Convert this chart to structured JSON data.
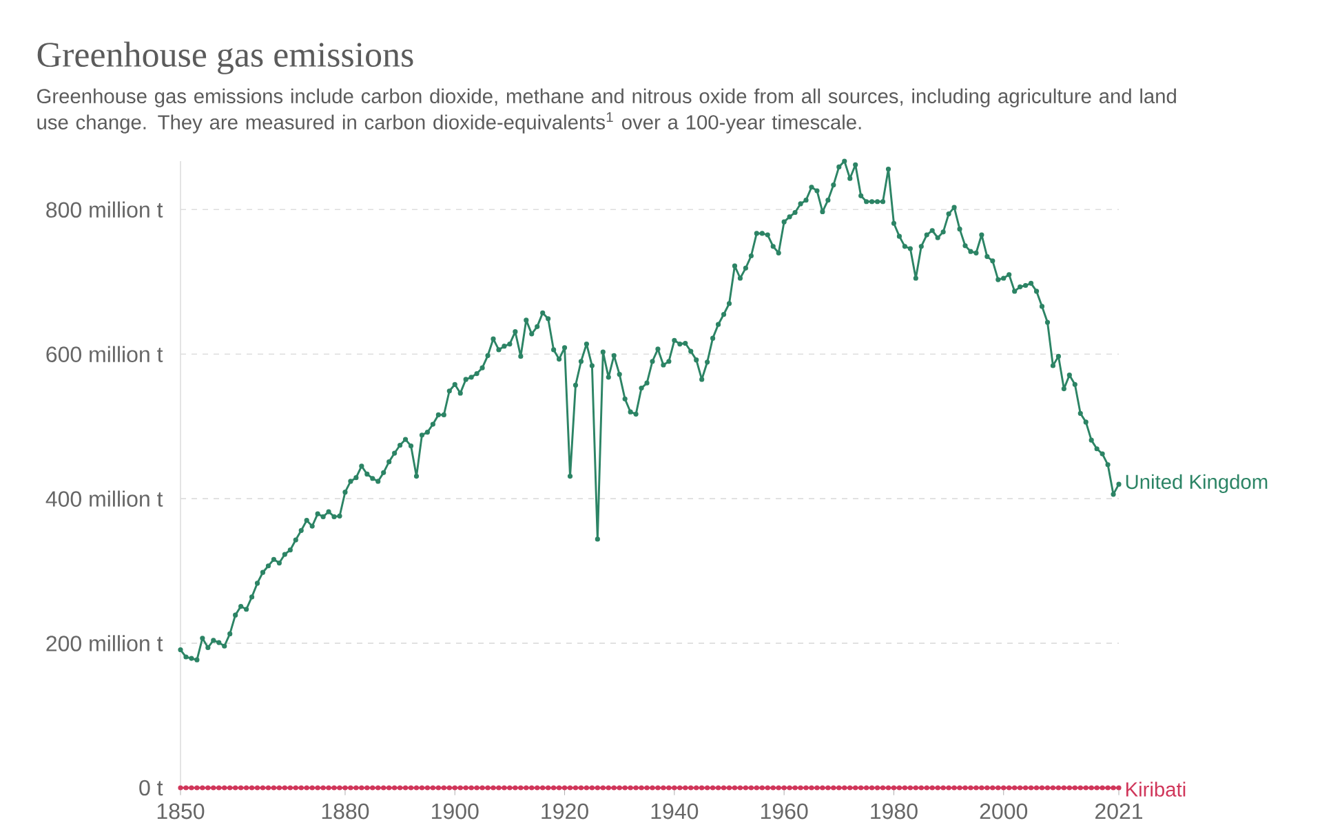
{
  "chart_data": {
    "type": "line",
    "title": "Greenhouse gas emissions",
    "subtitle": "Greenhouse gas emissions include carbon dioxide, methane and nitrous oxide from all sources, including agriculture and land use change. They are measured in carbon dioxide-equivalents$^{1}$ over a 100-year timescale.",
    "x": [
      1850,
      1851,
      1852,
      1853,
      1854,
      1855,
      1856,
      1857,
      1858,
      1859,
      1860,
      1861,
      1862,
      1863,
      1864,
      1865,
      1866,
      1867,
      1868,
      1869,
      1870,
      1871,
      1872,
      1873,
      1874,
      1875,
      1876,
      1877,
      1878,
      1879,
      1880,
      1881,
      1882,
      1883,
      1884,
      1885,
      1886,
      1887,
      1888,
      1889,
      1890,
      1891,
      1892,
      1893,
      1894,
      1895,
      1896,
      1897,
      1898,
      1899,
      1900,
      1901,
      1902,
      1903,
      1904,
      1905,
      1906,
      1907,
      1908,
      1909,
      1910,
      1911,
      1912,
      1913,
      1914,
      1915,
      1916,
      1917,
      1918,
      1919,
      1920,
      1921,
      1922,
      1923,
      1924,
      1925,
      1926,
      1927,
      1928,
      1929,
      1930,
      1931,
      1932,
      1933,
      1934,
      1935,
      1936,
      1937,
      1938,
      1939,
      1940,
      1941,
      1942,
      1943,
      1944,
      1945,
      1946,
      1947,
      1948,
      1949,
      1950,
      1951,
      1952,
      1953,
      1954,
      1955,
      1956,
      1957,
      1958,
      1959,
      1960,
      1961,
      1962,
      1963,
      1964,
      1965,
      1966,
      1967,
      1968,
      1969,
      1970,
      1971,
      1972,
      1973,
      1974,
      1975,
      1976,
      1977,
      1978,
      1979,
      1980,
      1981,
      1982,
      1983,
      1984,
      1985,
      1986,
      1987,
      1988,
      1989,
      1990,
      1991,
      1992,
      1993,
      1994,
      1995,
      1996,
      1997,
      1998,
      1999,
      2000,
      2001,
      2002,
      2003,
      2004,
      2005,
      2006,
      2007,
      2008,
      2009,
      2010,
      2011,
      2012,
      2013,
      2014,
      2015,
      2016,
      2017,
      2018,
      2019,
      2020,
      2021
    ],
    "series": [
      {
        "name": "United Kingdom",
        "color": "#2c8465",
        "values": [
          191,
          181,
          179,
          177,
          207,
          194,
          204,
          201,
          196,
          213,
          239,
          251,
          247,
          264,
          283,
          298,
          307,
          316,
          311,
          323,
          329,
          343,
          356,
          370,
          362,
          379,
          375,
          382,
          375,
          376,
          409,
          424,
          429,
          445,
          434,
          428,
          424,
          436,
          451,
          463,
          474,
          482,
          473,
          431,
          488,
          492,
          503,
          516,
          516,
          549,
          558,
          546,
          565,
          568,
          573,
          581,
          598,
          621,
          606,
          611,
          614,
          631,
          597,
          647,
          628,
          638,
          657,
          649,
          606,
          593,
          609,
          431,
          557,
          590,
          614,
          584,
          344,
          603,
          568,
          598,
          572,
          538,
          520,
          517,
          553,
          560,
          590,
          607,
          585,
          590,
          619,
          614,
          615,
          604,
          592,
          565,
          589,
          622,
          641,
          655,
          670,
          722,
          705,
          719,
          736,
          767,
          767,
          765,
          749,
          740,
          783,
          790,
          796,
          808,
          813,
          831,
          826,
          797,
          813,
          834,
          859,
          867,
          843,
          862,
          819,
          811,
          811,
          811,
          811,
          856,
          781,
          763,
          749,
          746,
          705,
          749,
          765,
          771,
          761,
          769,
          794,
          803,
          773,
          750,
          742,
          740,
          765,
          735,
          729,
          703,
          705,
          710,
          687,
          693,
          695,
          698,
          687,
          666,
          644,
          584,
          597,
          552,
          571,
          558,
          518,
          506,
          481,
          469,
          462,
          447,
          406,
          420
        ]
      },
      {
        "name": "Kiribati",
        "color": "#d0365a",
        "values": [
          0,
          0,
          0,
          0,
          0,
          0,
          0,
          0,
          0,
          0,
          0,
          0,
          0,
          0,
          0,
          0,
          0,
          0,
          0,
          0,
          0,
          0,
          0,
          0,
          0,
          0,
          0,
          0,
          0,
          0,
          0,
          0,
          0,
          0,
          0,
          0,
          0,
          0,
          0,
          0,
          0,
          0,
          0,
          0,
          0,
          0,
          0,
          0,
          0,
          0,
          0,
          0,
          0,
          0,
          0,
          0,
          0,
          0,
          0,
          0,
          0,
          0,
          0,
          0,
          0,
          0,
          0,
          0,
          0,
          0,
          0,
          0,
          0,
          0,
          0,
          0,
          0,
          0,
          0,
          0,
          0,
          0,
          0,
          0,
          0,
          0,
          0,
          0,
          0,
          0,
          0,
          0,
          0,
          0,
          0,
          0,
          0,
          0,
          0,
          0,
          0,
          0,
          0,
          0,
          0,
          0,
          0,
          0,
          0,
          0,
          0,
          0,
          0,
          0,
          0,
          0,
          0,
          0,
          0,
          0,
          0,
          0,
          0,
          0,
          0,
          0,
          0,
          0,
          0,
          0,
          0,
          0,
          0,
          0,
          0,
          0,
          0,
          0,
          0,
          0,
          0,
          0,
          0,
          0,
          0,
          0,
          0,
          0,
          0,
          0,
          0,
          0,
          0,
          0,
          0,
          0,
          0,
          0,
          0,
          0,
          0,
          0,
          0,
          0,
          0,
          0,
          0,
          0,
          0,
          0,
          0,
          0
        ]
      }
    ],
    "xlim": [
      1850,
      2021
    ],
    "xticks": [
      1850,
      1880,
      1900,
      1920,
      1940,
      1960,
      1980,
      2000,
      2021
    ],
    "ylim": [
      0,
      867
    ],
    "yticks": [
      {
        "value": 0,
        "label": "0 t"
      },
      {
        "value": 200,
        "label": "200 million t"
      },
      {
        "value": 400,
        "label": "400 million t"
      },
      {
        "value": 600,
        "label": "600 million t"
      },
      {
        "value": 800,
        "label": "800 million t"
      }
    ],
    "grid": "y",
    "marker": "circle",
    "line_style": "solid"
  }
}
